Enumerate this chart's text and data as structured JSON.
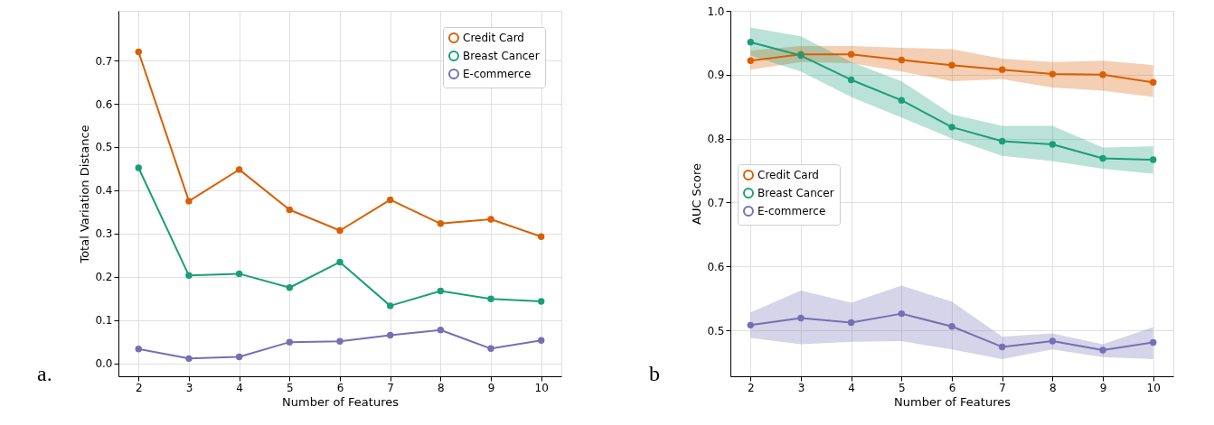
{
  "chart_data": [
    {
      "type": "line",
      "xlabel": "Number of Features",
      "ylabel": "Total Variation Distance",
      "x": [
        2,
        3,
        4,
        5,
        6,
        7,
        8,
        9,
        10
      ],
      "xlim": [
        1.6,
        10.4
      ],
      "xticks": [
        2,
        3,
        4,
        5,
        6,
        7,
        8,
        9,
        10
      ],
      "ylim": [
        -0.03,
        0.815
      ],
      "yticks": [
        {
          "value": 0,
          "label": "0.0"
        },
        0.1,
        0.2,
        0.3,
        0.4,
        0.5,
        0.6,
        0.7
      ],
      "grid": true,
      "legend": "top right",
      "marker": "circle",
      "annotations": [
        "a."
      ],
      "series": [
        {
          "name": "Credit Card",
          "color": "#d95f02",
          "values": [
            0.72,
            0.375,
            0.448,
            0.355,
            0.307,
            0.378,
            0.323,
            0.333,
            0.293
          ]
        },
        {
          "name": "Breast Cancer",
          "color": "#1b9e77",
          "values": [
            0.452,
            0.203,
            0.207,
            0.175,
            0.234,
            0.133,
            0.167,
            0.149,
            0.143
          ]
        },
        {
          "name": "E-commerce",
          "color": "#7570b3",
          "values": [
            0.033,
            0.011,
            0.015,
            0.049,
            0.051,
            0.065,
            0.077,
            0.034,
            0.053
          ]
        }
      ]
    },
    {
      "type": "line",
      "xlabel": "Number of Features",
      "ylabel": "AUC Score",
      "x": [
        2,
        3,
        4,
        5,
        6,
        7,
        8,
        9,
        10
      ],
      "xlim": [
        1.6,
        10.4
      ],
      "xticks": [
        2,
        3,
        4,
        5,
        6,
        7,
        8,
        9,
        10
      ],
      "ylim": [
        0.428,
        1.0
      ],
      "yticks": [
        0.5,
        0.6,
        0.7,
        0.8,
        0.9,
        {
          "value": 1,
          "label": "1.0"
        }
      ],
      "grid": true,
      "legend": "left",
      "marker": "circle",
      "annotations": [
        "b"
      ],
      "series": [
        {
          "name": "Credit Card",
          "color": "#d95f02",
          "values": [
            0.922,
            0.932,
            0.932,
            0.923,
            0.915,
            0.908,
            0.901,
            0.9,
            0.888
          ],
          "lower": [
            0.908,
            0.92,
            0.918,
            0.905,
            0.89,
            0.893,
            0.88,
            0.875,
            0.865
          ],
          "upper": [
            0.938,
            0.945,
            0.945,
            0.942,
            0.94,
            0.925,
            0.92,
            0.922,
            0.915
          ]
        },
        {
          "name": "Breast Cancer",
          "color": "#1b9e77",
          "values": [
            0.951,
            0.93,
            0.892,
            0.86,
            0.818,
            0.796,
            0.791,
            0.769,
            0.767
          ],
          "lower": [
            0.93,
            0.905,
            0.865,
            0.833,
            0.8,
            0.773,
            0.765,
            0.753,
            0.745
          ],
          "upper": [
            0.974,
            0.96,
            0.92,
            0.89,
            0.838,
            0.82,
            0.82,
            0.786,
            0.788
          ]
        },
        {
          "name": "E-commerce",
          "color": "#7570b3",
          "values": [
            0.508,
            0.519,
            0.512,
            0.526,
            0.506,
            0.474,
            0.483,
            0.469,
            0.481
          ],
          "lower": [
            0.488,
            0.478,
            0.482,
            0.483,
            0.47,
            0.455,
            0.47,
            0.458,
            0.455
          ],
          "upper": [
            0.528,
            0.562,
            0.543,
            0.57,
            0.545,
            0.49,
            0.495,
            0.478,
            0.505
          ]
        }
      ]
    }
  ]
}
